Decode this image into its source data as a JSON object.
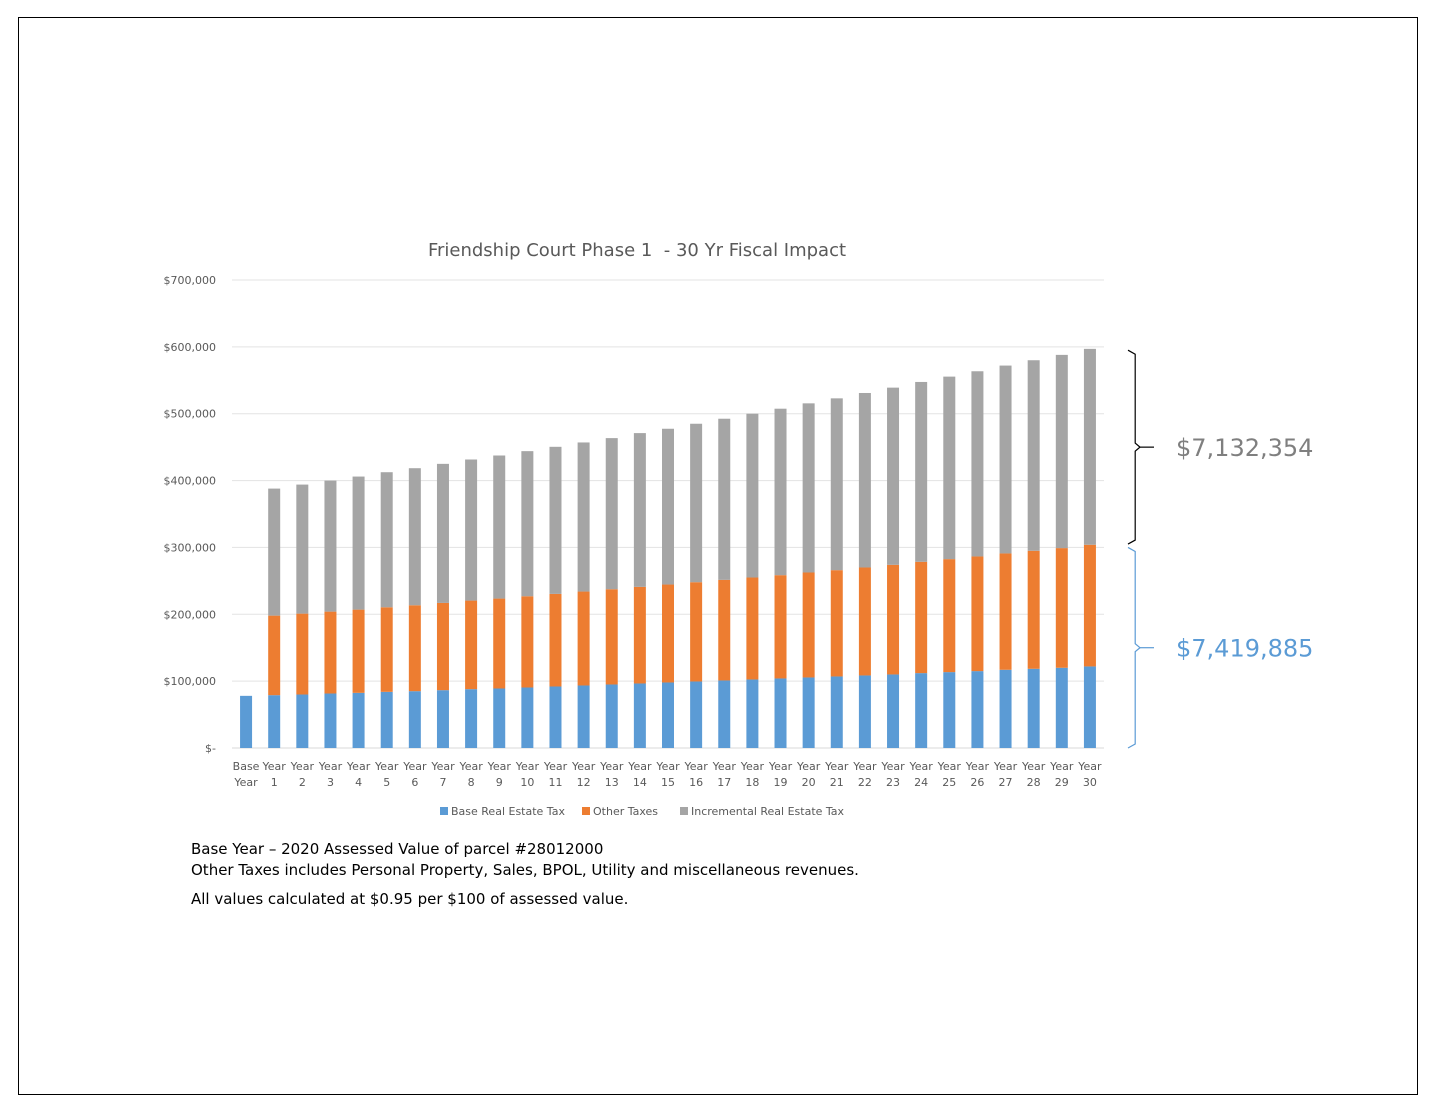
{
  "chart_data": {
    "type": "bar",
    "stacked": true,
    "title": "Friendship Court Phase 1  - 30 Yr Fiscal Impact",
    "xlabel": "",
    "ylabel": "",
    "ylim": [
      0,
      700000
    ],
    "yticks": [
      0,
      100000,
      200000,
      300000,
      400000,
      500000,
      600000,
      700000
    ],
    "ytick_labels": [
      "$-",
      "$100,000",
      "$200,000",
      "$300,000",
      "$400,000",
      "$500,000",
      "$600,000",
      "$700,000"
    ],
    "grid": true,
    "legend_position": "bottom",
    "categories": [
      [
        "Base",
        "Year"
      ],
      [
        "Year",
        "1"
      ],
      [
        "Year",
        "2"
      ],
      [
        "Year",
        "3"
      ],
      [
        "Year",
        "4"
      ],
      [
        "Year",
        "5"
      ],
      [
        "Year",
        "6"
      ],
      [
        "Year",
        "7"
      ],
      [
        "Year",
        "8"
      ],
      [
        "Year",
        "9"
      ],
      [
        "Year",
        "10"
      ],
      [
        "Year",
        "11"
      ],
      [
        "Year",
        "12"
      ],
      [
        "Year",
        "13"
      ],
      [
        "Year",
        "14"
      ],
      [
        "Year",
        "15"
      ],
      [
        "Year",
        "16"
      ],
      [
        "Year",
        "17"
      ],
      [
        "Year",
        "18"
      ],
      [
        "Year",
        "19"
      ],
      [
        "Year",
        "20"
      ],
      [
        "Year",
        "21"
      ],
      [
        "Year",
        "22"
      ],
      [
        "Year",
        "23"
      ],
      [
        "Year",
        "24"
      ],
      [
        "Year",
        "25"
      ],
      [
        "Year",
        "26"
      ],
      [
        "Year",
        "27"
      ],
      [
        "Year",
        "28"
      ],
      [
        "Year",
        "29"
      ],
      [
        "Year",
        "30"
      ]
    ],
    "series": [
      {
        "name": "Base Real Estate Tax",
        "color": "#5b9bd5",
        "values": [
          78000,
          79000,
          80000,
          81500,
          82500,
          84000,
          85000,
          86500,
          88000,
          89000,
          90500,
          92000,
          93500,
          95000,
          96500,
          98000,
          99500,
          101000,
          102500,
          104000,
          105500,
          107000,
          108500,
          110000,
          112000,
          113500,
          115000,
          117000,
          118500,
          120000,
          122000
        ]
      },
      {
        "name": "Other Taxes",
        "color": "#ed7d31",
        "values": [
          0,
          119000,
          121000,
          122500,
          124500,
          126500,
          128500,
          130500,
          132500,
          134500,
          136500,
          138500,
          140500,
          142500,
          144500,
          146500,
          148500,
          150500,
          152500,
          154500,
          157000,
          159000,
          161500,
          164000,
          166500,
          169000,
          171500,
          174000,
          176500,
          179000,
          182000
        ]
      },
      {
        "name": "Incremental Real Estate Tax",
        "color": "#a5a5a5",
        "values": [
          0,
          190000,
          193000,
          196000,
          199000,
          202000,
          205000,
          208000,
          211000,
          214000,
          217000,
          220000,
          223000,
          226000,
          230000,
          233000,
          237000,
          241000,
          245000,
          249000,
          253000,
          257000,
          261000,
          265000,
          269000,
          273000,
          277000,
          281000,
          285000,
          289000,
          293000
        ]
      }
    ],
    "annotations": [
      {
        "text": "$7,132,354",
        "color": "#7f7f7f",
        "range": [
          305000,
          595000
        ]
      },
      {
        "text": "$7,419,885",
        "color": "#5b9bd5",
        "range": [
          0,
          300000
        ]
      }
    ]
  },
  "notes": {
    "line1": "Base Year – 2020 Assessed Value of parcel #28012000",
    "line2": "Other Taxes includes Personal Property, Sales, BPOL, Utility and miscellaneous revenues.",
    "line3": "All values calculated at $0.95 per $100 of assessed value."
  }
}
